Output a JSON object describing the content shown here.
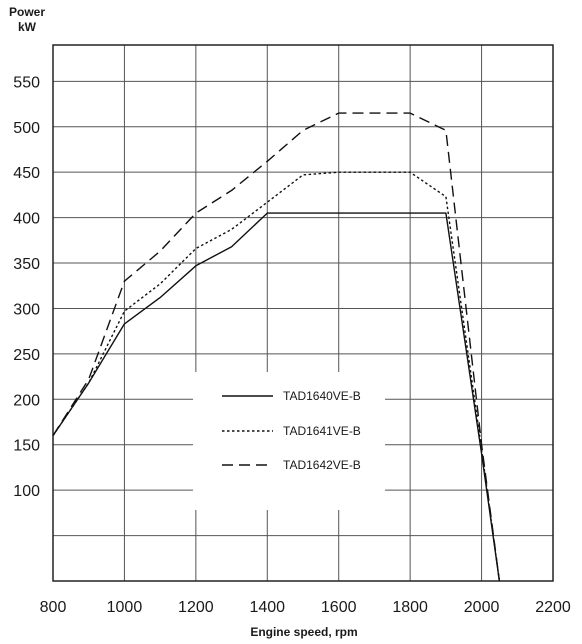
{
  "chart_data": {
    "type": "line",
    "title": "",
    "xlabel": "Engine speed, rpm",
    "ylabel": [
      "Power",
      "kW"
    ],
    "xlim": [
      800,
      2200
    ],
    "ylim": [
      0,
      590
    ],
    "x_ticks": [
      800,
      1000,
      1200,
      1400,
      1600,
      1800,
      2000,
      2200
    ],
    "y_ticks": [
      100,
      150,
      200,
      250,
      300,
      350,
      400,
      450,
      500,
      550
    ],
    "y_grid": [
      50,
      100,
      150,
      200,
      250,
      300,
      350,
      400,
      450,
      500,
      550
    ],
    "grid": true,
    "legend_position": "center-left",
    "series": [
      {
        "name": "TAD1640VE-B",
        "dash": "solid",
        "x": [
          800,
          900,
          1000,
          1100,
          1200,
          1300,
          1400,
          1500,
          1600,
          1700,
          1800,
          1900,
          2000,
          2050
        ],
        "y": [
          160,
          218,
          283,
          312,
          347,
          368,
          405,
          405,
          405,
          405,
          405,
          405,
          140,
          0
        ]
      },
      {
        "name": "TAD1641VE-B",
        "dash": "dotted",
        "x": [
          800,
          900,
          1000,
          1100,
          1200,
          1300,
          1400,
          1500,
          1600,
          1700,
          1800,
          1900,
          2000,
          2050
        ],
        "y": [
          160,
          218,
          297,
          327,
          366,
          387,
          417,
          447,
          450,
          450,
          450,
          423,
          145,
          0
        ]
      },
      {
        "name": "TAD1642VE-B",
        "dash": "dashed",
        "x": [
          800,
          900,
          1000,
          1100,
          1200,
          1300,
          1400,
          1500,
          1600,
          1700,
          1800,
          1900,
          2000,
          2050
        ],
        "y": [
          160,
          222,
          330,
          363,
          405,
          430,
          462,
          496,
          515,
          515,
          515,
          496,
          150,
          0
        ]
      }
    ]
  }
}
